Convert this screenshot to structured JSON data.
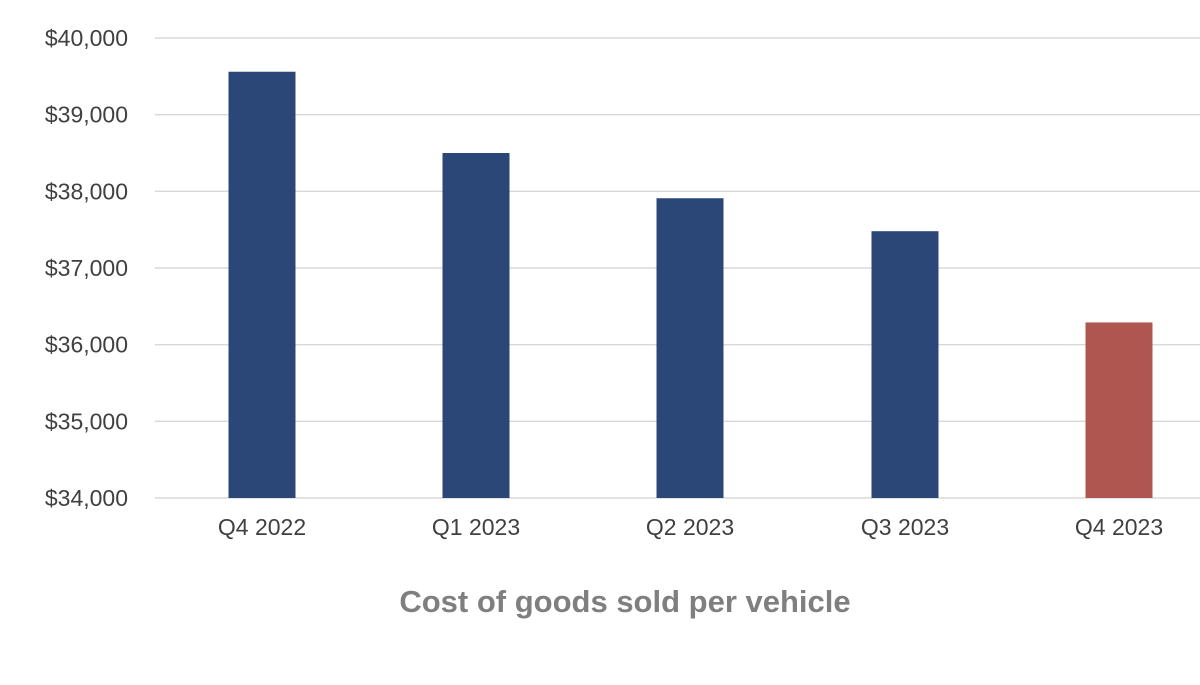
{
  "chart_data": {
    "type": "bar",
    "title": "Cost of goods sold per vehicle",
    "xlabel": "",
    "ylabel": "",
    "categories": [
      "Q4 2022",
      "Q1 2023",
      "Q2 2023",
      "Q3 2023",
      "Q4 2023"
    ],
    "values": [
      39560,
      38500,
      37910,
      37480,
      36290
    ],
    "bar_colors": [
      "#2b4778",
      "#2b4778",
      "#2b4778",
      "#2b4778",
      "#b05651"
    ],
    "ylim": [
      34000,
      40000
    ],
    "yticks": [
      34000,
      35000,
      36000,
      37000,
      38000,
      39000,
      40000
    ],
    "ytick_labels": [
      "$34,000",
      "$35,000",
      "$36,000",
      "$37,000",
      "$38,000",
      "$39,000",
      "$40,000"
    ],
    "grid": true,
    "legend": "none"
  }
}
